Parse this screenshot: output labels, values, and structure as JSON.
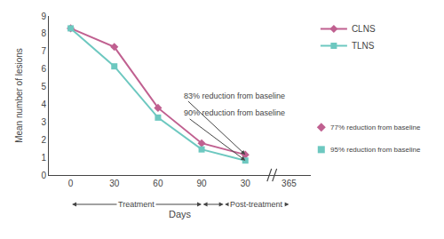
{
  "chart_data": {
    "type": "line",
    "xlabel": "Days",
    "ylabel": "Mean number of lesions",
    "categories": [
      "0",
      "30",
      "60",
      "90",
      "30",
      "365"
    ],
    "series": [
      {
        "name": "CLNS",
        "color": "#c06090",
        "marker": "diamond",
        "values": [
          8.3,
          7.25,
          3.8,
          1.8,
          1.15,
          null
        ]
      },
      {
        "name": "TLNS",
        "color": "#6dc8c0",
        "marker": "square",
        "values": [
          8.3,
          6.15,
          3.25,
          1.45,
          0.82,
          null
        ]
      }
    ],
    "ylim": [
      0,
      9
    ],
    "yticks": [
      0,
      1,
      2,
      3,
      4,
      5,
      6,
      7,
      8,
      9
    ],
    "grid": false,
    "legend": "right",
    "annotations": [
      {
        "text": "83% reduction from baseline",
        "series": "CLNS"
      },
      {
        "text": "90% reduction from baseline",
        "series": "TLNS"
      }
    ],
    "notes": [
      {
        "text": "77% reduction from baseline",
        "series": "CLNS"
      },
      {
        "text": "95% reduction from baseline",
        "series": "TLNS"
      }
    ],
    "phases": [
      "Treatment",
      "Post-treatment"
    ]
  }
}
